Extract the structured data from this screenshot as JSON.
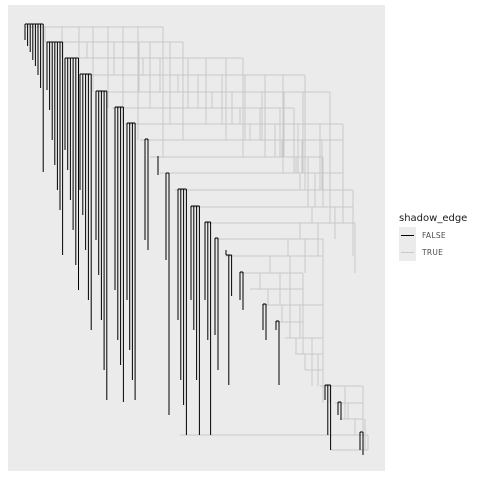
{
  "chart_data": {
    "type": "dendrogram",
    "title": "",
    "xlabel": "",
    "ylabel": "",
    "axes_visible": false,
    "grid": false,
    "panel_background": "#ebebeb",
    "legend": {
      "title": "shadow_edge",
      "position": "right",
      "entries": [
        {
          "label": "FALSE",
          "color": "#000000"
        },
        {
          "label": "TRUE",
          "color": "#c8c8c8"
        }
      ]
    },
    "description_levels": {
      "leaf_groups": 18,
      "leaves_per_group_range": [
        1,
        8
      ]
    }
  }
}
